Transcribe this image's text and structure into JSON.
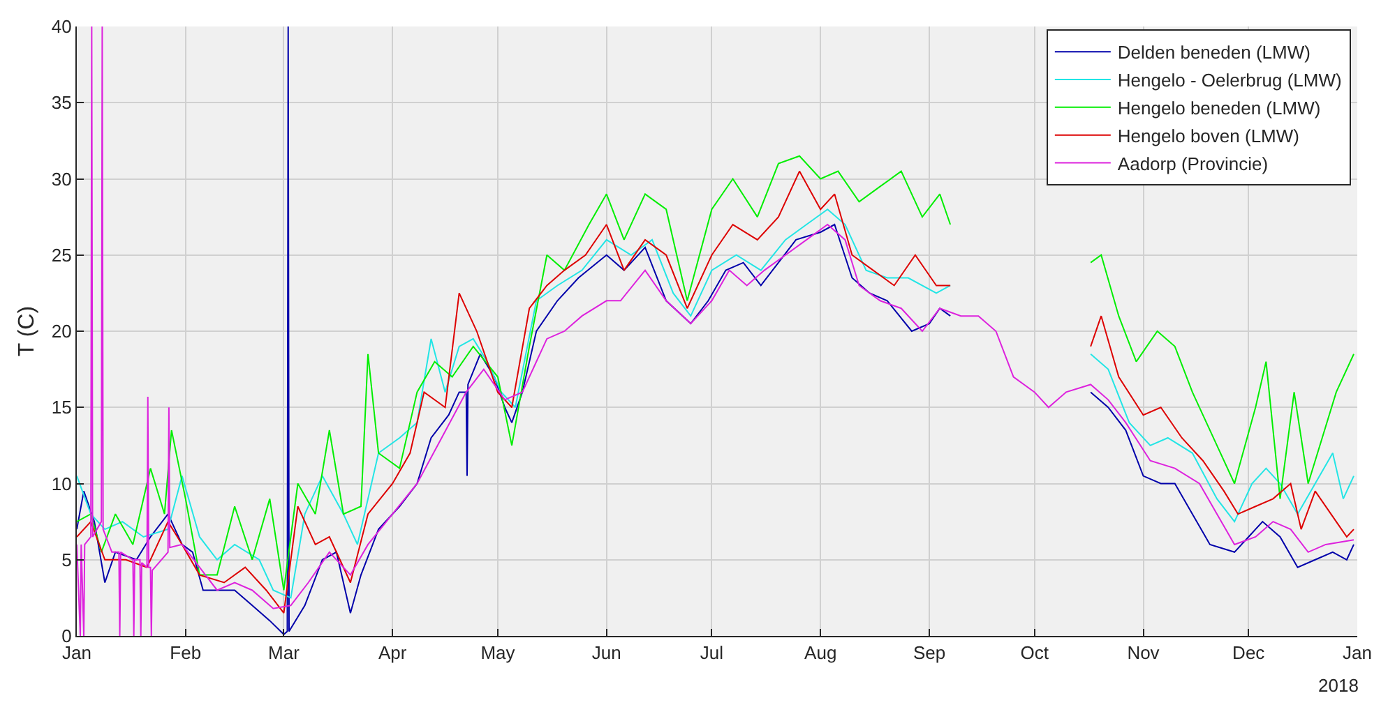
{
  "chart_data": {
    "type": "line",
    "ylabel": "T (C)",
    "annotations": [
      "2018"
    ],
    "xlim": [
      "2018-01-01",
      "2019-01-01"
    ],
    "xticks": [
      {
        "value": "2018-01-01",
        "label": "Jan"
      },
      {
        "value": "2018-02-01",
        "label": "Feb"
      },
      {
        "value": "2018-03-01",
        "label": "Mar"
      },
      {
        "value": "2018-04-01",
        "label": "Apr"
      },
      {
        "value": "2018-05-01",
        "label": "May"
      },
      {
        "value": "2018-06-01",
        "label": "Jun"
      },
      {
        "value": "2018-07-01",
        "label": "Jul"
      },
      {
        "value": "2018-08-01",
        "label": "Aug"
      },
      {
        "value": "2018-09-01",
        "label": "Sep"
      },
      {
        "value": "2018-10-01",
        "label": "Oct"
      },
      {
        "value": "2018-11-01",
        "label": "Nov"
      },
      {
        "value": "2018-12-01",
        "label": "Dec"
      },
      {
        "value": "2019-01-01",
        "label": "Jan"
      }
    ],
    "ylim": [
      0,
      40
    ],
    "yticks": [
      0,
      5,
      10,
      15,
      20,
      25,
      30,
      35,
      40
    ],
    "grid": true,
    "legend": "top right",
    "marker": "none",
    "line_style": "solid",
    "series": [
      {
        "name": "Delden beneden (LMW)",
        "color": "#0000aa",
        "x": [
          "2018-01-01",
          "2018-01-03",
          "2018-01-06",
          "2018-01-09",
          "2018-01-12",
          "2018-01-18",
          "2018-01-22",
          "2018-01-27",
          "2018-01-31",
          "2018-02-03",
          "2018-02-06",
          "2018-02-10",
          "2018-02-15",
          "2018-02-20",
          "2018-02-25",
          "2018-03-01",
          "2018-03-02T00:00",
          "2018-03-02T06:00",
          "2018-03-02T12:00",
          "2018-03-07",
          "2018-03-12",
          "2018-03-16",
          "2018-03-20",
          "2018-03-23",
          "2018-03-28",
          "2018-04-03",
          "2018-04-08",
          "2018-04-12",
          "2018-04-17",
          "2018-04-20",
          "2018-04-22T00:00",
          "2018-04-22T06:00",
          "2018-04-22T12:00",
          "2018-04-26",
          "2018-04-30",
          "2018-05-03",
          "2018-05-05",
          "2018-05-08",
          "2018-05-12",
          "2018-05-18",
          "2018-05-24",
          "2018-06-01",
          "2018-06-06",
          "2018-06-12",
          "2018-06-18",
          "2018-06-25",
          "2018-06-30",
          "2018-07-05",
          "2018-07-10",
          "2018-07-15",
          "2018-07-20",
          "2018-07-25",
          "2018-08-01",
          "2018-08-05",
          "2018-08-10",
          "2018-08-15",
          "2018-08-20",
          "2018-08-27",
          "2018-09-01",
          "2018-09-04",
          "2018-09-07",
          "2018-09-08",
          "2018-10-17",
          "2018-10-22",
          "2018-10-27",
          "2018-11-01",
          "2018-11-06",
          "2018-11-10",
          "2018-11-15",
          "2018-11-20",
          "2018-11-27",
          "2018-12-01",
          "2018-12-05",
          "2018-12-10",
          "2018-12-15",
          "2018-12-20",
          "2018-12-25",
          "2018-12-29",
          "2018-12-31"
        ],
        "values": [
          7,
          9.5,
          7.5,
          3.5,
          5.5,
          5,
          6.5,
          8,
          6,
          5.5,
          3,
          3,
          3,
          2,
          1,
          0.1,
          0.3,
          40,
          0.3,
          2,
          5,
          5.5,
          1.5,
          4,
          7,
          8.5,
          10,
          13,
          14.5,
          16,
          16,
          10.5,
          16.5,
          18.5,
          17,
          15,
          14,
          16,
          20,
          22,
          23.5,
          25,
          24,
          25.5,
          22,
          20.5,
          22,
          24,
          24.5,
          23,
          24.5,
          26,
          26.5,
          27,
          23.5,
          22.5,
          22,
          20,
          20.5,
          21.5,
          21,
          null,
          16,
          15,
          13.5,
          10.5,
          10,
          10,
          8,
          6,
          5.5,
          6.5,
          7.5,
          6.5,
          4.5,
          5,
          5.5,
          5,
          6
        ]
      },
      {
        "name": "Hengelo - Oelerbrug (LMW)",
        "color": "#22e5e5",
        "x": [
          "2018-01-01",
          "2018-01-05",
          "2018-01-09",
          "2018-01-14",
          "2018-01-20",
          "2018-01-27",
          "2018-01-31",
          "2018-02-05",
          "2018-02-10",
          "2018-02-15",
          "2018-02-22",
          "2018-02-26",
          "2018-03-03",
          "2018-03-07",
          "2018-03-12",
          "2018-03-18",
          "2018-03-22",
          "2018-03-28",
          "2018-04-03",
          "2018-04-08",
          "2018-04-12",
          "2018-04-16",
          "2018-04-20",
          "2018-04-24",
          "2018-04-28",
          "2018-05-02",
          "2018-05-06",
          "2018-05-12",
          "2018-05-18",
          "2018-05-25",
          "2018-06-01",
          "2018-06-08",
          "2018-06-14",
          "2018-06-20",
          "2018-06-25",
          "2018-07-01",
          "2018-07-08",
          "2018-07-15",
          "2018-07-22",
          "2018-07-28",
          "2018-08-03",
          "2018-08-08",
          "2018-08-14",
          "2018-08-20",
          "2018-08-26",
          "2018-09-03",
          "2018-09-07",
          "2018-09-08",
          "2018-10-17",
          "2018-10-22",
          "2018-10-28",
          "2018-11-03",
          "2018-11-08",
          "2018-11-15",
          "2018-11-22",
          "2018-11-27",
          "2018-12-02",
          "2018-12-06",
          "2018-12-10",
          "2018-12-15",
          "2018-12-20",
          "2018-12-25",
          "2018-12-28",
          "2018-12-31"
        ],
        "values": [
          10.5,
          8,
          7,
          7.5,
          6.5,
          7,
          10.5,
          6.5,
          5,
          6,
          5,
          3,
          2.5,
          8,
          10.5,
          8,
          6,
          12,
          13,
          14,
          19.5,
          16,
          19,
          19.5,
          18,
          16,
          15,
          22,
          23,
          24,
          26,
          25,
          26,
          22.5,
          21,
          24,
          25,
          24,
          26,
          27,
          28,
          27,
          24,
          23.5,
          23.5,
          22.5,
          23,
          null,
          18.5,
          17.5,
          14,
          12.5,
          13,
          12,
          9,
          7.5,
          10,
          11,
          10,
          8,
          10,
          12,
          9,
          10.5
        ]
      },
      {
        "name": "Hengelo beneden (LMW)",
        "color": "#00ee00",
        "x": [
          "2018-01-01",
          "2018-01-05",
          "2018-01-08",
          "2018-01-12",
          "2018-01-17",
          "2018-01-22",
          "2018-01-26",
          "2018-01-28",
          "2018-02-01",
          "2018-02-05",
          "2018-02-10",
          "2018-02-15",
          "2018-02-20",
          "2018-02-25",
          "2018-03-01",
          "2018-03-05",
          "2018-03-10",
          "2018-03-14",
          "2018-03-18",
          "2018-03-23",
          "2018-03-25",
          "2018-03-28",
          "2018-04-03",
          "2018-04-08",
          "2018-04-13",
          "2018-04-18",
          "2018-04-24",
          "2018-05-01",
          "2018-05-05",
          "2018-05-10",
          "2018-05-15",
          "2018-05-20",
          "2018-05-27",
          "2018-06-01",
          "2018-06-06",
          "2018-06-12",
          "2018-06-18",
          "2018-06-24",
          "2018-07-01",
          "2018-07-07",
          "2018-07-14",
          "2018-07-20",
          "2018-07-26",
          "2018-08-01",
          "2018-08-06",
          "2018-08-12",
          "2018-08-18",
          "2018-08-24",
          "2018-08-30",
          "2018-09-04",
          "2018-09-07",
          "2018-09-08",
          "2018-10-17",
          "2018-10-20",
          "2018-10-25",
          "2018-10-30",
          "2018-11-05",
          "2018-11-10",
          "2018-11-15",
          "2018-11-22",
          "2018-11-27",
          "2018-12-03",
          "2018-12-06",
          "2018-12-10",
          "2018-12-14",
          "2018-12-18",
          "2018-12-22",
          "2018-12-26",
          "2018-12-31"
        ],
        "values": [
          7.5,
          8,
          5.5,
          8,
          6,
          11,
          8,
          13.5,
          9,
          4,
          4,
          8.5,
          5,
          9,
          3,
          10,
          8,
          13.5,
          8,
          8.5,
          18.5,
          12,
          11,
          16,
          18,
          17,
          19,
          17,
          12.5,
          19,
          25,
          24,
          27,
          29,
          26,
          29,
          28,
          22,
          28,
          30,
          27.5,
          31,
          31.5,
          30,
          30.5,
          28.5,
          29.5,
          30.5,
          27.5,
          29,
          27,
          null,
          24.5,
          25,
          21,
          18,
          20,
          19,
          16,
          12.5,
          10,
          15,
          18,
          9,
          16,
          10,
          13,
          16,
          18.5
        ]
      },
      {
        "name": "Hengelo boven (LMW)",
        "color": "#dd0000",
        "x": [
          "2018-01-01",
          "2018-01-05",
          "2018-01-09",
          "2018-01-15",
          "2018-01-21",
          "2018-01-27",
          "2018-01-31",
          "2018-02-05",
          "2018-02-12",
          "2018-02-18",
          "2018-02-24",
          "2018-03-01",
          "2018-03-05",
          "2018-03-10",
          "2018-03-14",
          "2018-03-20",
          "2018-03-25",
          "2018-04-01",
          "2018-04-06",
          "2018-04-10",
          "2018-04-16",
          "2018-04-20",
          "2018-04-25",
          "2018-05-01",
          "2018-05-05",
          "2018-05-10",
          "2018-05-15",
          "2018-05-20",
          "2018-05-26",
          "2018-06-01",
          "2018-06-06",
          "2018-06-12",
          "2018-06-18",
          "2018-06-24",
          "2018-07-01",
          "2018-07-07",
          "2018-07-14",
          "2018-07-20",
          "2018-07-26",
          "2018-08-01",
          "2018-08-05",
          "2018-08-10",
          "2018-08-16",
          "2018-08-22",
          "2018-08-28",
          "2018-09-03",
          "2018-09-07",
          "2018-09-08",
          "2018-10-17",
          "2018-10-20",
          "2018-10-25",
          "2018-11-01",
          "2018-11-06",
          "2018-11-12",
          "2018-11-18",
          "2018-11-24",
          "2018-11-28",
          "2018-12-03",
          "2018-12-08",
          "2018-12-13",
          "2018-12-16",
          "2018-12-20",
          "2018-12-26",
          "2018-12-29",
          "2018-12-31"
        ],
        "values": [
          6.5,
          7.5,
          5,
          5,
          4.5,
          7.5,
          6,
          4,
          3.5,
          4.5,
          3,
          1.5,
          8.5,
          6,
          6.5,
          3.5,
          8,
          10,
          12,
          16,
          15,
          22.5,
          20,
          16,
          15,
          21.5,
          23,
          24,
          25,
          27,
          24,
          26,
          25,
          21.5,
          25,
          27,
          26,
          27.5,
          30.5,
          28,
          29,
          25,
          24,
          23,
          25,
          23,
          23,
          null,
          19,
          21,
          17,
          14.5,
          15,
          13,
          11.5,
          9.5,
          8,
          8.5,
          9,
          10,
          7,
          9.5,
          7.5,
          6.5,
          7
        ]
      },
      {
        "name": "Aadorp (Provincie)",
        "color": "#dd22dd",
        "x": [
          "2018-01-01T00:00",
          "2018-01-02T00:00",
          "2018-01-02T06:00",
          "2018-01-03T00:00",
          "2018-01-03T06:00",
          "2018-01-05T00:00",
          "2018-01-05T06:00",
          "2018-01-05T12:00",
          "2018-01-08T00:00",
          "2018-01-08T06:00",
          "2018-01-08T12:00",
          "2018-01-11T00:00",
          "2018-01-13T00:00",
          "2018-01-13T06:00",
          "2018-01-13T12:00",
          "2018-01-17T00:00",
          "2018-01-17T06:00",
          "2018-01-17T12:00",
          "2018-01-19T00:00",
          "2018-01-19T06:00",
          "2018-01-19T12:00",
          "2018-01-21T00:00",
          "2018-01-21T06:00",
          "2018-01-21T12:00",
          "2018-01-22T00:00",
          "2018-01-22T06:00",
          "2018-01-22T12:00",
          "2018-01-27T00:00",
          "2018-01-27T06:00",
          "2018-01-27T12:00",
          "2018-01-31",
          "2018-02-05",
          "2018-02-10",
          "2018-02-15",
          "2018-02-20",
          "2018-02-26",
          "2018-03-03",
          "2018-03-08",
          "2018-03-14",
          "2018-03-20",
          "2018-03-25",
          "2018-04-01",
          "2018-04-08",
          "2018-04-15",
          "2018-04-22",
          "2018-04-27",
          "2018-05-03",
          "2018-05-08",
          "2018-05-15",
          "2018-05-20",
          "2018-05-25",
          "2018-06-01",
          "2018-06-05",
          "2018-06-12",
          "2018-06-18",
          "2018-06-25",
          "2018-07-01",
          "2018-07-06",
          "2018-07-11",
          "2018-07-16",
          "2018-07-22",
          "2018-07-28",
          "2018-08-03",
          "2018-08-08",
          "2018-08-12",
          "2018-08-18",
          "2018-08-24",
          "2018-08-30",
          "2018-09-04",
          "2018-09-10",
          "2018-09-15",
          "2018-09-20",
          "2018-09-25",
          "2018-10-01",
          "2018-10-05",
          "2018-10-10",
          "2018-10-17",
          "2018-10-22",
          "2018-10-27",
          "2018-11-03",
          "2018-11-10",
          "2018-11-17",
          "2018-11-22",
          "2018-11-27",
          "2018-12-03",
          "2018-12-08",
          "2018-12-13",
          "2018-12-18",
          "2018-12-23",
          "2018-12-31"
        ],
        "values": [
          6,
          0,
          6,
          0,
          6,
          6.5,
          40,
          6.5,
          7.5,
          40,
          7,
          5.5,
          5.5,
          0,
          5.5,
          5,
          0,
          5,
          5,
          0,
          4.8,
          4.5,
          15.7,
          4.5,
          4.5,
          0,
          4.3,
          5.5,
          15,
          5.8,
          6,
          4.5,
          3,
          3.5,
          3,
          1.8,
          2,
          3.5,
          5.5,
          4,
          6,
          8,
          10,
          13,
          16,
          17.5,
          15.5,
          16,
          19.5,
          20,
          21,
          22,
          22,
          24,
          22,
          20.5,
          22,
          24,
          23,
          24,
          25,
          26,
          27,
          26,
          23,
          22,
          21.5,
          20,
          21.5,
          21,
          21,
          20,
          17,
          16,
          15,
          16,
          16.5,
          15.5,
          14,
          11.5,
          11,
          10,
          8,
          6,
          6.5,
          7.5,
          7,
          5.5,
          6,
          6.3
        ]
      }
    ]
  }
}
